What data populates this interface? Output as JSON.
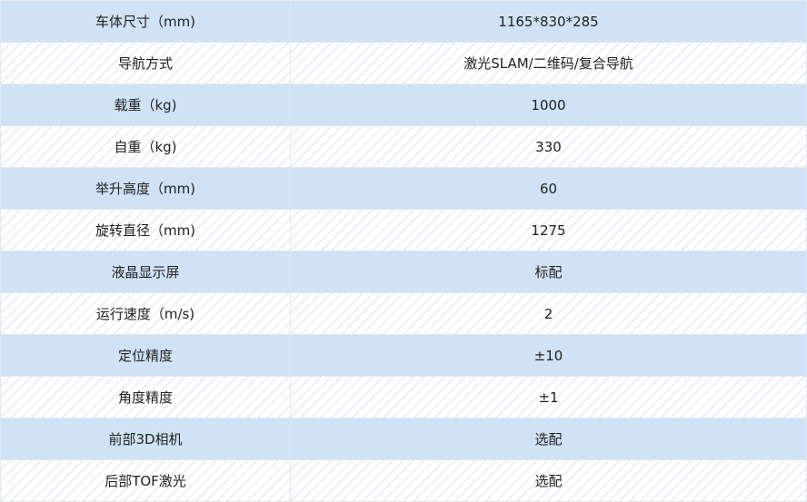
{
  "colors": {
    "row_blue": "#cfe2f6",
    "row_stripe": "#eceff4"
  },
  "rows": [
    {
      "label": "车体尺寸（mm)",
      "value": "1165*830*285"
    },
    {
      "label": "导航方式",
      "value": "激光SLAM/二维码/复合导航"
    },
    {
      "label": "载重（kg)",
      "value": "1000"
    },
    {
      "label": "自重（kg)",
      "value": "330"
    },
    {
      "label": "举升高度（mm)",
      "value": "60"
    },
    {
      "label": "旋转直径（mm)",
      "value": "1275"
    },
    {
      "label": "液晶显示屏",
      "value": "标配"
    },
    {
      "label": "运行速度（m/s)",
      "value": "2"
    },
    {
      "label": "定位精度",
      "value": "±10"
    },
    {
      "label": "角度精度",
      "value": "±1"
    },
    {
      "label": "前部3D相机",
      "value": "选配"
    },
    {
      "label": "后部TOF激光",
      "value": "选配"
    }
  ]
}
